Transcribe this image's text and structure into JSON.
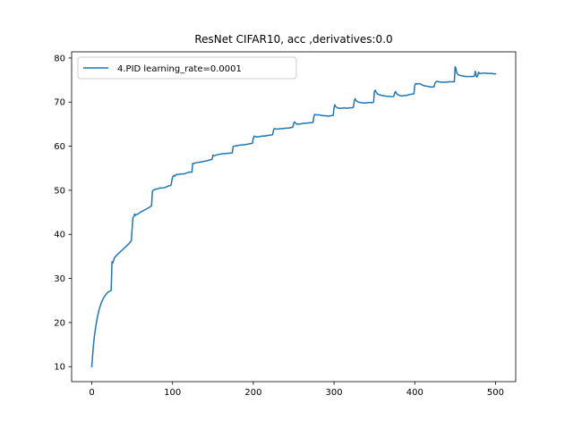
{
  "chart_data": {
    "type": "line",
    "title": "ResNet CIFAR10, acc ,derivatives:0.0",
    "xlabel": "",
    "ylabel": "",
    "xlim": [
      -25,
      525
    ],
    "ylim": [
      6.6,
      81.4
    ],
    "xticks": [
      0,
      100,
      200,
      300,
      400,
      500
    ],
    "yticks": [
      10,
      20,
      30,
      40,
      50,
      60,
      70,
      80
    ],
    "grid": false,
    "legend_position": "upper left",
    "line_color": "#1f77b4",
    "series": [
      {
        "name": "4.PID learning_rate=0.0001",
        "points": [
          [
            0,
            10.0
          ],
          [
            1,
            12.6
          ],
          [
            2,
            14.8
          ],
          [
            3,
            16.6
          ],
          [
            4,
            18.0
          ],
          [
            5,
            19.2
          ],
          [
            6,
            20.3
          ],
          [
            7,
            21.3
          ],
          [
            8,
            22.1
          ],
          [
            9,
            22.9
          ],
          [
            10,
            23.5
          ],
          [
            12,
            24.6
          ],
          [
            14,
            25.4
          ],
          [
            16,
            26.0
          ],
          [
            18,
            26.5
          ],
          [
            20,
            26.9
          ],
          [
            24,
            27.3
          ],
          [
            25,
            33.8
          ],
          [
            26,
            33.5
          ],
          [
            27,
            34.1
          ],
          [
            28,
            34.7
          ],
          [
            30,
            35.1
          ],
          [
            32,
            35.5
          ],
          [
            35,
            36.0
          ],
          [
            38,
            36.5
          ],
          [
            42,
            37.2
          ],
          [
            46,
            37.9
          ],
          [
            49,
            38.6
          ],
          [
            50,
            41.5
          ],
          [
            51,
            43.8
          ],
          [
            52,
            44.0
          ],
          [
            53,
            44.6
          ],
          [
            54,
            44.3
          ],
          [
            55,
            44.5
          ],
          [
            57,
            44.6
          ],
          [
            60,
            45.0
          ],
          [
            63,
            45.3
          ],
          [
            66,
            45.6
          ],
          [
            69,
            45.9
          ],
          [
            72,
            46.2
          ],
          [
            74,
            46.5
          ],
          [
            75,
            49.7
          ],
          [
            76,
            50.0
          ],
          [
            78,
            50.2
          ],
          [
            81,
            50.3
          ],
          [
            84,
            50.5
          ],
          [
            87,
            50.5
          ],
          [
            90,
            50.6
          ],
          [
            93,
            50.8
          ],
          [
            95,
            51.0
          ],
          [
            98,
            51.1
          ],
          [
            100,
            53.0
          ],
          [
            101,
            53.2
          ],
          [
            102,
            53.4
          ],
          [
            103,
            53.2
          ],
          [
            105,
            53.6
          ],
          [
            108,
            53.6
          ],
          [
            111,
            53.7
          ],
          [
            114,
            53.7
          ],
          [
            117,
            53.9
          ],
          [
            120,
            54.1
          ],
          [
            124,
            54.1
          ],
          [
            125,
            56.1
          ],
          [
            126,
            56.0
          ],
          [
            128,
            56.2
          ],
          [
            131,
            56.3
          ],
          [
            134,
            56.4
          ],
          [
            137,
            56.5
          ],
          [
            140,
            56.6
          ],
          [
            143,
            56.7
          ],
          [
            146,
            56.9
          ],
          [
            149,
            57.0
          ],
          [
            150,
            58.0
          ],
          [
            151,
            57.8
          ],
          [
            153,
            57.9
          ],
          [
            156,
            58.1
          ],
          [
            159,
            58.2
          ],
          [
            162,
            58.3
          ],
          [
            165,
            58.3
          ],
          [
            168,
            58.4
          ],
          [
            171,
            58.4
          ],
          [
            174,
            58.5
          ],
          [
            175,
            59.9
          ],
          [
            176,
            60.0
          ],
          [
            179,
            60.1
          ],
          [
            182,
            60.2
          ],
          [
            185,
            60.3
          ],
          [
            188,
            60.3
          ],
          [
            191,
            60.4
          ],
          [
            194,
            60.5
          ],
          [
            197,
            60.6
          ],
          [
            199,
            60.7
          ],
          [
            200,
            61.8
          ],
          [
            201,
            62.3
          ],
          [
            202,
            62.2
          ],
          [
            205,
            62.1
          ],
          [
            208,
            62.2
          ],
          [
            211,
            62.3
          ],
          [
            214,
            62.3
          ],
          [
            217,
            62.4
          ],
          [
            220,
            62.5
          ],
          [
            224,
            62.6
          ],
          [
            225,
            63.6
          ],
          [
            226,
            64.0
          ],
          [
            228,
            63.9
          ],
          [
            231,
            63.9
          ],
          [
            234,
            64.0
          ],
          [
            237,
            64.0
          ],
          [
            240,
            64.1
          ],
          [
            243,
            64.1
          ],
          [
            246,
            64.2
          ],
          [
            249,
            64.3
          ],
          [
            250,
            65.2
          ],
          [
            251,
            65.5
          ],
          [
            252,
            65.3
          ],
          [
            254,
            65.0
          ],
          [
            257,
            65.0
          ],
          [
            260,
            65.1
          ],
          [
            263,
            65.2
          ],
          [
            266,
            65.2
          ],
          [
            269,
            65.3
          ],
          [
            272,
            65.3
          ],
          [
            274,
            65.4
          ],
          [
            275,
            66.7
          ],
          [
            276,
            67.2
          ],
          [
            278,
            67.1
          ],
          [
            281,
            67.1
          ],
          [
            284,
            67.0
          ],
          [
            287,
            66.9
          ],
          [
            290,
            66.9
          ],
          [
            293,
            66.8
          ],
          [
            296,
            66.9
          ],
          [
            299,
            67.0
          ],
          [
            300,
            68.7
          ],
          [
            301,
            69.4
          ],
          [
            302,
            69.0
          ],
          [
            304,
            68.7
          ],
          [
            307,
            68.6
          ],
          [
            310,
            68.6
          ],
          [
            313,
            68.7
          ],
          [
            316,
            68.6
          ],
          [
            319,
            68.7
          ],
          [
            322,
            68.7
          ],
          [
            324,
            68.8
          ],
          [
            325,
            70.2
          ],
          [
            326,
            70.8
          ],
          [
            327,
            70.4
          ],
          [
            330,
            70.0
          ],
          [
            333,
            69.9
          ],
          [
            336,
            69.8
          ],
          [
            339,
            69.8
          ],
          [
            342,
            69.9
          ],
          [
            345,
            69.9
          ],
          [
            348,
            69.9
          ],
          [
            349,
            70.0
          ],
          [
            350,
            72.4
          ],
          [
            351,
            72.7
          ],
          [
            352,
            72.3
          ],
          [
            354,
            71.8
          ],
          [
            357,
            71.6
          ],
          [
            360,
            71.5
          ],
          [
            363,
            71.4
          ],
          [
            366,
            71.3
          ],
          [
            369,
            71.3
          ],
          [
            372,
            71.2
          ],
          [
            374,
            71.3
          ],
          [
            375,
            72.0
          ],
          [
            376,
            72.4
          ],
          [
            378,
            71.8
          ],
          [
            381,
            71.5
          ],
          [
            384,
            71.4
          ],
          [
            387,
            71.5
          ],
          [
            390,
            71.5
          ],
          [
            393,
            71.7
          ],
          [
            396,
            71.8
          ],
          [
            399,
            71.9
          ],
          [
            400,
            73.8
          ],
          [
            401,
            74.2
          ],
          [
            403,
            74.1
          ],
          [
            406,
            74.2
          ],
          [
            409,
            73.9
          ],
          [
            412,
            73.7
          ],
          [
            415,
            73.6
          ],
          [
            418,
            73.5
          ],
          [
            421,
            73.4
          ],
          [
            424,
            73.5
          ],
          [
            425,
            74.3
          ],
          [
            427,
            74.7
          ],
          [
            430,
            74.6
          ],
          [
            433,
            74.5
          ],
          [
            436,
            74.5
          ],
          [
            439,
            74.5
          ],
          [
            442,
            74.6
          ],
          [
            445,
            74.6
          ],
          [
            449,
            74.6
          ],
          [
            450,
            78.0
          ],
          [
            451,
            77.6
          ],
          [
            452,
            76.6
          ],
          [
            454,
            76.2
          ],
          [
            457,
            76.0
          ],
          [
            460,
            75.9
          ],
          [
            463,
            75.8
          ],
          [
            466,
            75.8
          ],
          [
            469,
            75.8
          ],
          [
            472,
            75.8
          ],
          [
            474,
            75.9
          ],
          [
            475,
            77.0
          ],
          [
            476,
            76.1
          ],
          [
            477,
            75.7
          ],
          [
            478,
            76.0
          ],
          [
            479,
            76.8
          ],
          [
            480,
            76.5
          ],
          [
            483,
            76.5
          ],
          [
            486,
            76.6
          ],
          [
            489,
            76.5
          ],
          [
            492,
            76.5
          ],
          [
            495,
            76.5
          ],
          [
            498,
            76.4
          ],
          [
            500,
            76.4
          ]
        ]
      }
    ]
  }
}
